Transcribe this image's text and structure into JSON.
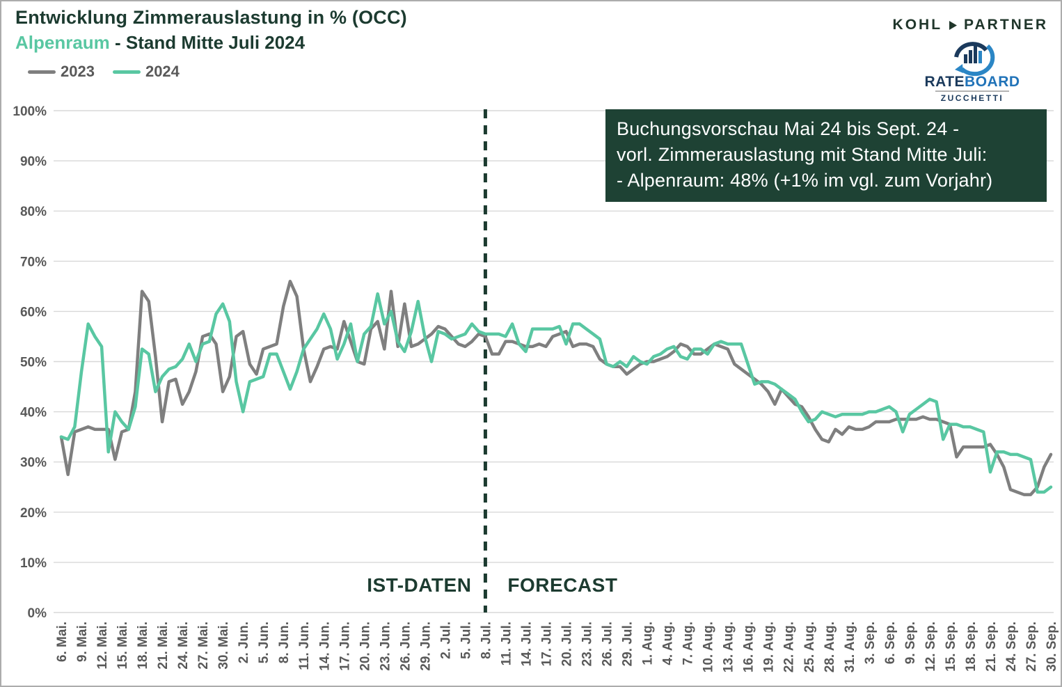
{
  "header": {
    "title": "Entwicklung Zimmerauslastung in % (OCC)",
    "subtitle_highlight": "Alpenraum",
    "subtitle_rest": " - Stand Mitte Juli 2024"
  },
  "logos": {
    "kohl_partner": {
      "left": "KOHL",
      "right": "PARTNER"
    },
    "rateboard": {
      "rate": "RATE",
      "board": "BOARD",
      "sub": "ZUCCHETTI"
    }
  },
  "legend": [
    {
      "label": "2023",
      "color": "#7f7f7f"
    },
    {
      "label": "2024",
      "color": "#59c7a2"
    }
  ],
  "annotation": {
    "bg": "#1e4234",
    "lines": [
      "Buchungsvorschau Mai 24 bis Sept. 24 -",
      "vorl. Zimmerauslastung mit Stand Mitte Juli:",
      "- Alpenraum:  48% (+1% im vgl. zum Vorjahr)"
    ]
  },
  "chart_data": {
    "type": "line",
    "title": "Entwicklung Zimmerauslastung in % (OCC)",
    "subtitle": "Alpenraum - Stand Mitte Juli 2024",
    "grid": "horizontal",
    "legend_position": "top-left",
    "y_axis": {
      "min": 0,
      "max": 100,
      "step": 10,
      "tick_suffix": "%"
    },
    "y_tick_labels": [
      "0%",
      "10%",
      "20%",
      "30%",
      "40%",
      "50%",
      "60%",
      "70%",
      "80%",
      "90%",
      "100%"
    ],
    "x_unit": "day",
    "x_tick_step_days": 3,
    "x_tick_labels": [
      "6. Mai.",
      "9. Mai.",
      "12. Mai.",
      "15. Mai.",
      "18. Mai.",
      "21. Mai.",
      "24. Mai.",
      "27. Mai.",
      "30. Mai.",
      "2. Jun.",
      "5. Jun.",
      "8. Jun.",
      "11. Jun.",
      "14. Jun.",
      "17. Jun.",
      "20. Jun.",
      "23. Jun.",
      "26. Jun.",
      "29. Jun.",
      "2. Jul.",
      "5. Jul.",
      "8. Jul.",
      "11. Jul.",
      "14. Jul.",
      "17. Jul.",
      "20. Jul.",
      "23. Jul.",
      "26. Jul.",
      "29. Jul.",
      "1. Aug.",
      "4. Aug.",
      "7. Aug.",
      "10. Aug.",
      "13. Aug.",
      "16. Aug.",
      "19. Aug.",
      "22. Aug.",
      "25. Aug.",
      "28. Aug.",
      "31. Aug.",
      "3. Sep.",
      "6. Sep.",
      "9. Sep.",
      "12. Sep.",
      "15. Sep.",
      "18. Sep.",
      "21. Sep.",
      "24. Sep.",
      "27. Sep.",
      "30. Sep."
    ],
    "forecast_boundary_index": 63,
    "forecast_boundary_label": "8. Jul.",
    "zone_labels": {
      "left": "IST-DATEN",
      "right": "FORECAST"
    },
    "accent_dark": "#1c3b30",
    "gridline_color": "#d8d8d8",
    "series": [
      {
        "name": "2023",
        "color": "#7f7f7f",
        "values": [
          35,
          27.5,
          36,
          36.5,
          37,
          36.5,
          36.5,
          36.5,
          30.5,
          36,
          36.5,
          44,
          64,
          62,
          51,
          38,
          46,
          46.5,
          41.5,
          44,
          48,
          55,
          55.5,
          53.5,
          44,
          47,
          55,
          56,
          49.5,
          47.5,
          52.5,
          53,
          53.5,
          61,
          66,
          63,
          52.5,
          46,
          49,
          52.5,
          53,
          52.5,
          58,
          54,
          50,
          49.5,
          56.5,
          58,
          52.5,
          64,
          53,
          61.5,
          53,
          53.5,
          54.5,
          55.5,
          57,
          56.5,
          55,
          53.5,
          53,
          54,
          55.5,
          55,
          51.5,
          51.5,
          54,
          54,
          53.5,
          53,
          53,
          53.5,
          53,
          55,
          55.5,
          56,
          53,
          53.5,
          53.5,
          53,
          50.5,
          49.5,
          49,
          49,
          47.5,
          48.5,
          49.5,
          50,
          50,
          50.5,
          51,
          52,
          53.5,
          53,
          51.5,
          51.5,
          52.5,
          53.5,
          53,
          52.5,
          49.5,
          48.5,
          47.5,
          46.5,
          45.5,
          44,
          41.5,
          44.5,
          43,
          41.5,
          41,
          39,
          36.5,
          34.5,
          34,
          36.5,
          35.5,
          37,
          36.5,
          36.5,
          37,
          38,
          38,
          38,
          38.5,
          38.5,
          38.5,
          38.5,
          39,
          38.5,
          38.5,
          38,
          37.5,
          31,
          33,
          33,
          33,
          33,
          33.5,
          31.5,
          29,
          24.5,
          24,
          23.5,
          23.5,
          25,
          29,
          31.5
        ]
      },
      {
        "name": "2024",
        "color": "#59c7a2",
        "values": [
          35,
          34.5,
          37,
          48,
          57.5,
          55,
          53,
          32,
          40,
          38,
          36.5,
          41,
          52.5,
          51.5,
          44,
          47,
          48.5,
          49,
          50.5,
          53.5,
          50,
          53.5,
          54,
          59.5,
          61.5,
          58,
          46,
          40,
          46,
          46.5,
          47,
          51.5,
          51.5,
          48,
          44.5,
          48,
          52.5,
          54.5,
          56.5,
          59.5,
          56.5,
          50.5,
          53.5,
          57.5,
          50,
          55.5,
          57,
          63.5,
          57.5,
          60,
          54,
          52,
          56,
          62,
          55,
          50,
          56,
          55.5,
          54.5,
          55,
          55.5,
          57.5,
          56,
          55.5,
          55.5,
          55.5,
          55,
          57.5,
          53.5,
          52,
          56.5,
          56.5,
          56.5,
          56.5,
          57,
          53.5,
          57.5,
          57.5,
          56.5,
          55.5,
          54.5,
          49.5,
          49,
          50,
          49,
          51,
          50,
          49.5,
          51,
          51.5,
          52.5,
          53,
          51,
          50.5,
          52.5,
          52.5,
          51.5,
          53.5,
          54,
          53.5,
          53.5,
          53.5,
          49.5,
          45.5,
          46,
          46,
          45.5,
          44.5,
          43.5,
          42.5,
          40,
          38,
          38.5,
          40,
          39.5,
          39,
          39.5,
          39.5,
          39.5,
          39.5,
          40,
          40,
          40.5,
          41,
          40,
          36,
          39.5,
          40.5,
          41.5,
          42.5,
          42,
          34.5,
          37.5,
          37.5,
          37,
          37,
          36.5,
          36,
          28,
          32,
          32,
          31.5,
          31.5,
          31,
          30.5,
          24,
          24,
          25
        ]
      }
    ]
  }
}
